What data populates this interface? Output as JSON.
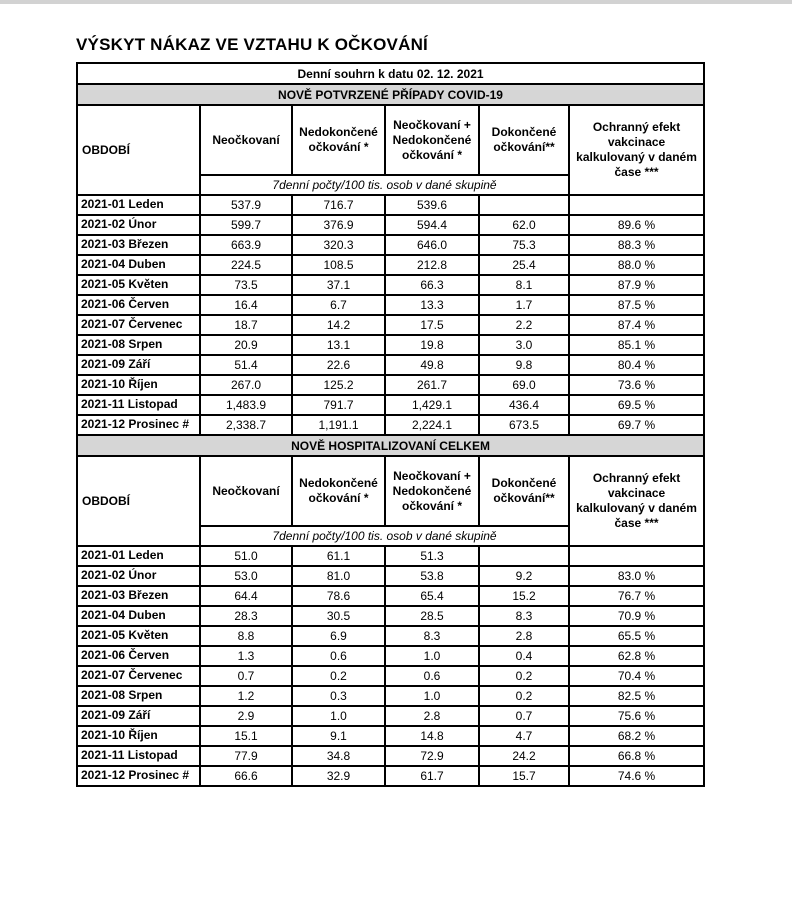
{
  "page": {
    "title": "VÝSKYT NÁKAZ VE VZTAHU K OČKOVÁNÍ",
    "summary_bar": "Denní souhrn k datu 02. 12. 2021"
  },
  "colors": {
    "highlight_pink": "#e4106c",
    "section_gray": "#d6d6d6",
    "top_strip_gray": "#d2d2d2"
  },
  "columns": {
    "period": "OBDOBÍ",
    "unvaccinated": "Neočkovaní",
    "incomplete": "Nedokončené očkování *",
    "unvacc_plus_incomplete": "Neočkovaní + Nedokončené očkování *",
    "complete": "Dokončené očkování**",
    "protective_effect": "Ochranný efekt vakcinace kalkulovaný v daném čase ***",
    "subheader": "7denní počty/100 tis. osob v dané skupině"
  },
  "tables": [
    {
      "section_title": "NOVĚ POTVRZENÉ PŘÍPADY COVID-19",
      "rows": [
        {
          "period": "2021-01 Leden",
          "values": [
            "537.9",
            "716.7",
            "539.6",
            "",
            ""
          ]
        },
        {
          "period": "2021-02 Únor",
          "values": [
            "599.7",
            "376.9",
            "594.4",
            "62.0",
            "89.6 %"
          ]
        },
        {
          "period": "2021-03 Březen",
          "values": [
            "663.9",
            "320.3",
            "646.0",
            "75.3",
            "88.3 %"
          ]
        },
        {
          "period": "2021-04 Duben",
          "values": [
            "224.5",
            "108.5",
            "212.8",
            "25.4",
            "88.0 %"
          ]
        },
        {
          "period": "2021-05 Květen",
          "values": [
            "73.5",
            "37.1",
            "66.3",
            "8.1",
            "87.9 %"
          ]
        },
        {
          "period": "2021-06 Červen",
          "values": [
            "16.4",
            "6.7",
            "13.3",
            "1.7",
            "87.5 %"
          ]
        },
        {
          "period": "2021-07 Červenec",
          "values": [
            "18.7",
            "14.2",
            "17.5",
            "2.2",
            "87.4 %"
          ]
        },
        {
          "period": "2021-08 Srpen",
          "values": [
            "20.9",
            "13.1",
            "19.8",
            "3.0",
            "85.1 %"
          ]
        },
        {
          "period": "2021-09 Září",
          "values": [
            "51.4",
            "22.6",
            "49.8",
            "9.8",
            "80.4 %"
          ]
        },
        {
          "period": "2021-10 Říjen",
          "values": [
            "267.0",
            "125.2",
            "261.7",
            "69.0",
            "73.6 %"
          ]
        },
        {
          "period": "2021-11 Listopad",
          "values": [
            "1,483.9",
            "791.7",
            "1,429.1",
            "436.4",
            "69.5 %"
          ]
        },
        {
          "period": "2021-12 Prosinec #",
          "values": [
            "2,338.7",
            "1,191.1",
            "2,224.1",
            "673.5",
            "69.7 %"
          ]
        }
      ]
    },
    {
      "section_title": "NOVĚ HOSPITALIZOVANÍ CELKEM",
      "rows": [
        {
          "period": "2021-01 Leden",
          "values": [
            "51.0",
            "61.1",
            "51.3",
            "",
            ""
          ]
        },
        {
          "period": "2021-02 Únor",
          "values": [
            "53.0",
            "81.0",
            "53.8",
            "9.2",
            "83.0 %"
          ]
        },
        {
          "period": "2021-03 Březen",
          "values": [
            "64.4",
            "78.6",
            "65.4",
            "15.2",
            "76.7 %"
          ]
        },
        {
          "period": "2021-04 Duben",
          "values": [
            "28.3",
            "30.5",
            "28.5",
            "8.3",
            "70.9 %"
          ]
        },
        {
          "period": "2021-05 Květen",
          "values": [
            "8.8",
            "6.9",
            "8.3",
            "2.8",
            "65.5 %"
          ]
        },
        {
          "period": "2021-06 Červen",
          "values": [
            "1.3",
            "0.6",
            "1.0",
            "0.4",
            "62.8 %"
          ]
        },
        {
          "period": "2021-07 Červenec",
          "values": [
            "0.7",
            "0.2",
            "0.6",
            "0.2",
            "70.4 %"
          ]
        },
        {
          "period": "2021-08 Srpen",
          "values": [
            "1.2",
            "0.3",
            "1.0",
            "0.2",
            "82.5 %"
          ]
        },
        {
          "period": "2021-09 Září",
          "values": [
            "2.9",
            "1.0",
            "2.8",
            "0.7",
            "75.6 %"
          ]
        },
        {
          "period": "2021-10 Říjen",
          "values": [
            "15.1",
            "9.1",
            "14.8",
            "4.7",
            "68.2 %"
          ]
        },
        {
          "period": "2021-11 Listopad",
          "values": [
            "77.9",
            "34.8",
            "72.9",
            "24.2",
            "66.8 %"
          ]
        },
        {
          "period": "2021-12 Prosinec #",
          "values": [
            "66.6",
            "32.9",
            "61.7",
            "15.7",
            "74.6 %"
          ]
        }
      ]
    }
  ]
}
